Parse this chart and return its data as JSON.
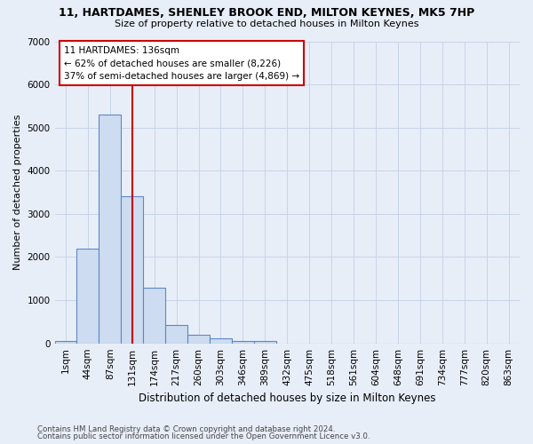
{
  "title": "11, HARTDAMES, SHENLEY BROOK END, MILTON KEYNES, MK5 7HP",
  "subtitle": "Size of property relative to detached houses in Milton Keynes",
  "xlabel": "Distribution of detached houses by size in Milton Keynes",
  "ylabel": "Number of detached properties",
  "footer1": "Contains HM Land Registry data © Crown copyright and database right 2024.",
  "footer2": "Contains public sector information licensed under the Open Government Licence v3.0.",
  "bar_labels": [
    "1sqm",
    "44sqm",
    "87sqm",
    "131sqm",
    "174sqm",
    "217sqm",
    "260sqm",
    "303sqm",
    "346sqm",
    "389sqm",
    "432sqm",
    "475sqm",
    "518sqm",
    "561sqm",
    "604sqm",
    "648sqm",
    "691sqm",
    "734sqm",
    "777sqm",
    "820sqm",
    "863sqm"
  ],
  "bar_values": [
    50,
    2200,
    5300,
    3400,
    1300,
    430,
    200,
    120,
    50,
    50,
    0,
    0,
    0,
    0,
    0,
    0,
    0,
    0,
    0,
    0,
    0
  ],
  "bar_color": "#cddcf0",
  "bar_edge_color": "#5b88c8",
  "ylim": [
    0,
    7000
  ],
  "yticks": [
    0,
    1000,
    2000,
    3000,
    4000,
    5000,
    6000,
    7000
  ],
  "red_line_x": 3.0,
  "marker_label": "11 HARTDAMES: 136sqm",
  "annotation_line1": "← 62% of detached houses are smaller (8,226)",
  "annotation_line2": "37% of semi-detached houses are larger (4,869) →",
  "red_line_color": "#cc0000",
  "annotation_box_color": "#ffffff",
  "annotation_box_edge": "#cc0000",
  "grid_color": "#c8d4e8",
  "bg_color": "#e8eef8",
  "axes_bg_color": "#e8eef8"
}
